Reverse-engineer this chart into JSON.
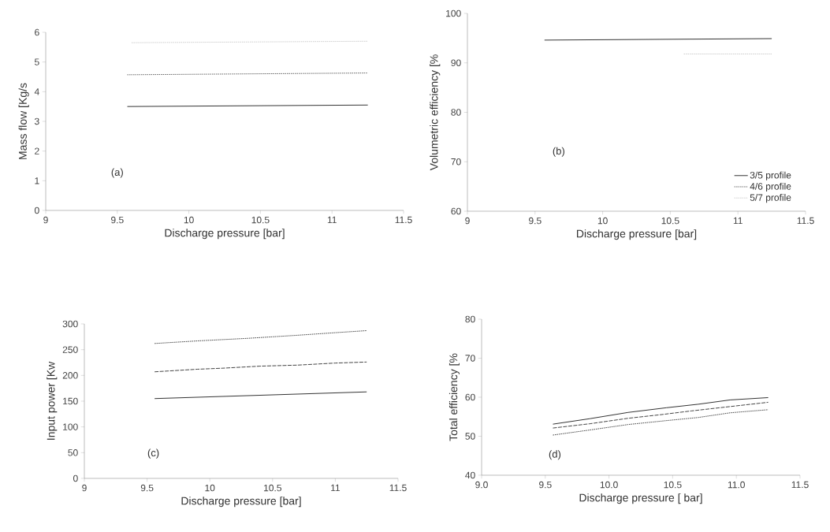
{
  "chart_data": [
    {
      "type": "line",
      "ylabel": "Mass flow [Kg/s",
      "xlabel": "Discharge pressure [bar]",
      "annotations": [
        "(a)"
      ],
      "xlim": [
        9,
        11.5
      ],
      "xticks": [
        9,
        9.5,
        10,
        10.5,
        11,
        11.5
      ],
      "ylim": [
        0,
        6
      ],
      "yticks": [
        0,
        1,
        2,
        3,
        4,
        5,
        6
      ],
      "series": [
        {
          "color": "#333333",
          "line_style": "solid",
          "x": [
            9.57,
            11.25
          ],
          "values": [
            3.5,
            3.55
          ]
        },
        {
          "color": "#666666",
          "line_style": "dotted",
          "x": [
            9.57,
            11.25
          ],
          "values": [
            4.57,
            4.63
          ]
        },
        {
          "color": "#cccccc",
          "line_style": "dotted",
          "x": [
            9.6,
            11.25
          ],
          "values": [
            5.65,
            5.7
          ]
        }
      ]
    },
    {
      "type": "line",
      "ylabel": "Volumetric efficiency [%",
      "xlabel": "Discharge pressure [bar]",
      "annotations": [
        "(b)"
      ],
      "legend": "bottom right",
      "xlim": [
        9,
        11.5
      ],
      "xticks": [
        9,
        9.5,
        10,
        10.5,
        11,
        11.5
      ],
      "ylim": [
        60,
        100
      ],
      "yticks": [
        60,
        70,
        80,
        90,
        100
      ],
      "series": [
        {
          "name": "3/5 profile",
          "color": "#333333",
          "line_style": "solid",
          "x": [
            9.57,
            11.25
          ],
          "values": [
            94.6,
            94.9
          ]
        },
        {
          "name": "4/6 profile",
          "color": "#666666",
          "line_style": "dotted",
          "values": [
            null,
            null
          ]
        },
        {
          "name": "5/7 profile",
          "color": "#cccccc",
          "line_style": "dotted",
          "x": [
            10.6,
            11.25
          ],
          "values": [
            91.8,
            91.8
          ]
        }
      ]
    },
    {
      "type": "line",
      "ylabel": "Input power [Kw",
      "xlabel": "Discharge pressure [bar]",
      "annotations": [
        "(c)"
      ],
      "xlim": [
        9,
        11.5
      ],
      "xticks": [
        9,
        9.5,
        10,
        10.5,
        11,
        11.5
      ],
      "ylim": [
        0,
        300
      ],
      "yticks": [
        0,
        50,
        100,
        150,
        200,
        250,
        300
      ],
      "series": [
        {
          "color": "#333333",
          "line_style": "solid",
          "x": [
            9.56,
            11.25
          ],
          "values": [
            155,
            168
          ]
        },
        {
          "color": "#444444",
          "line_style": "dashed",
          "x": [
            9.56,
            9.9,
            10.1,
            10.4,
            10.7,
            11.0,
            11.25
          ],
          "values": [
            207,
            212,
            214,
            218,
            220,
            224,
            226
          ]
        },
        {
          "color": "#444444",
          "line_style": "dotted",
          "x": [
            9.56,
            9.9,
            10.3,
            10.7,
            11.0,
            11.25
          ],
          "values": [
            262,
            267,
            272,
            278,
            283,
            287
          ]
        }
      ]
    },
    {
      "type": "line",
      "ylabel": "Total efficiency [%",
      "xlabel": "Discharge pressure [ bar]",
      "annotations": [
        "(d)"
      ],
      "xlim": [
        9,
        11.5
      ],
      "xticks": [
        {
          "value": 9,
          "label": "9.0"
        },
        9.5,
        {
          "value": 10,
          "label": "10.0"
        },
        10.5,
        {
          "value": 11,
          "label": "11.0"
        },
        11.5
      ],
      "ylim": [
        40,
        80
      ],
      "yticks": [
        40,
        50,
        60,
        70,
        80
      ],
      "series": [
        {
          "color": "#333333",
          "line_style": "solid",
          "x": [
            9.56,
            9.85,
            10.15,
            10.45,
            10.7,
            10.95,
            11.25
          ],
          "values": [
            53.1,
            54.5,
            56.1,
            57.3,
            58.2,
            59.3,
            59.9
          ]
        },
        {
          "color": "#444444",
          "line_style": "dashed",
          "x": [
            9.56,
            9.85,
            10.15,
            10.4,
            10.65,
            10.95,
            11.25
          ],
          "values": [
            52.1,
            53.2,
            54.6,
            55.5,
            56.5,
            57.6,
            58.7
          ]
        },
        {
          "color": "#444444",
          "line_style": "dotted",
          "x": [
            9.56,
            9.85,
            10.15,
            10.45,
            10.7,
            10.95,
            11.25
          ],
          "values": [
            50.3,
            51.6,
            53.0,
            54.0,
            54.8,
            56.0,
            56.8
          ]
        }
      ]
    }
  ]
}
